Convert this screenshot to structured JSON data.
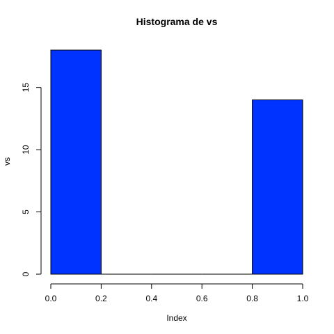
{
  "chart_data": {
    "type": "bar",
    "title": "Histograma de  vs",
    "xlabel": "Index",
    "ylabel": "vs",
    "bin_edges": [
      0,
      0.2,
      0.4,
      0.6,
      0.8,
      1.0
    ],
    "values": [
      18,
      0,
      0,
      0,
      14
    ],
    "xlim": [
      0,
      1.0
    ],
    "ylim": [
      0,
      18
    ],
    "x_ticks": [
      "0.0",
      "0.2",
      "0.4",
      "0.6",
      "0.8",
      "1.0"
    ],
    "y_ticks": [
      "0",
      "5",
      "10",
      "15"
    ],
    "bar_color": "#0033ff",
    "grid": false
  }
}
